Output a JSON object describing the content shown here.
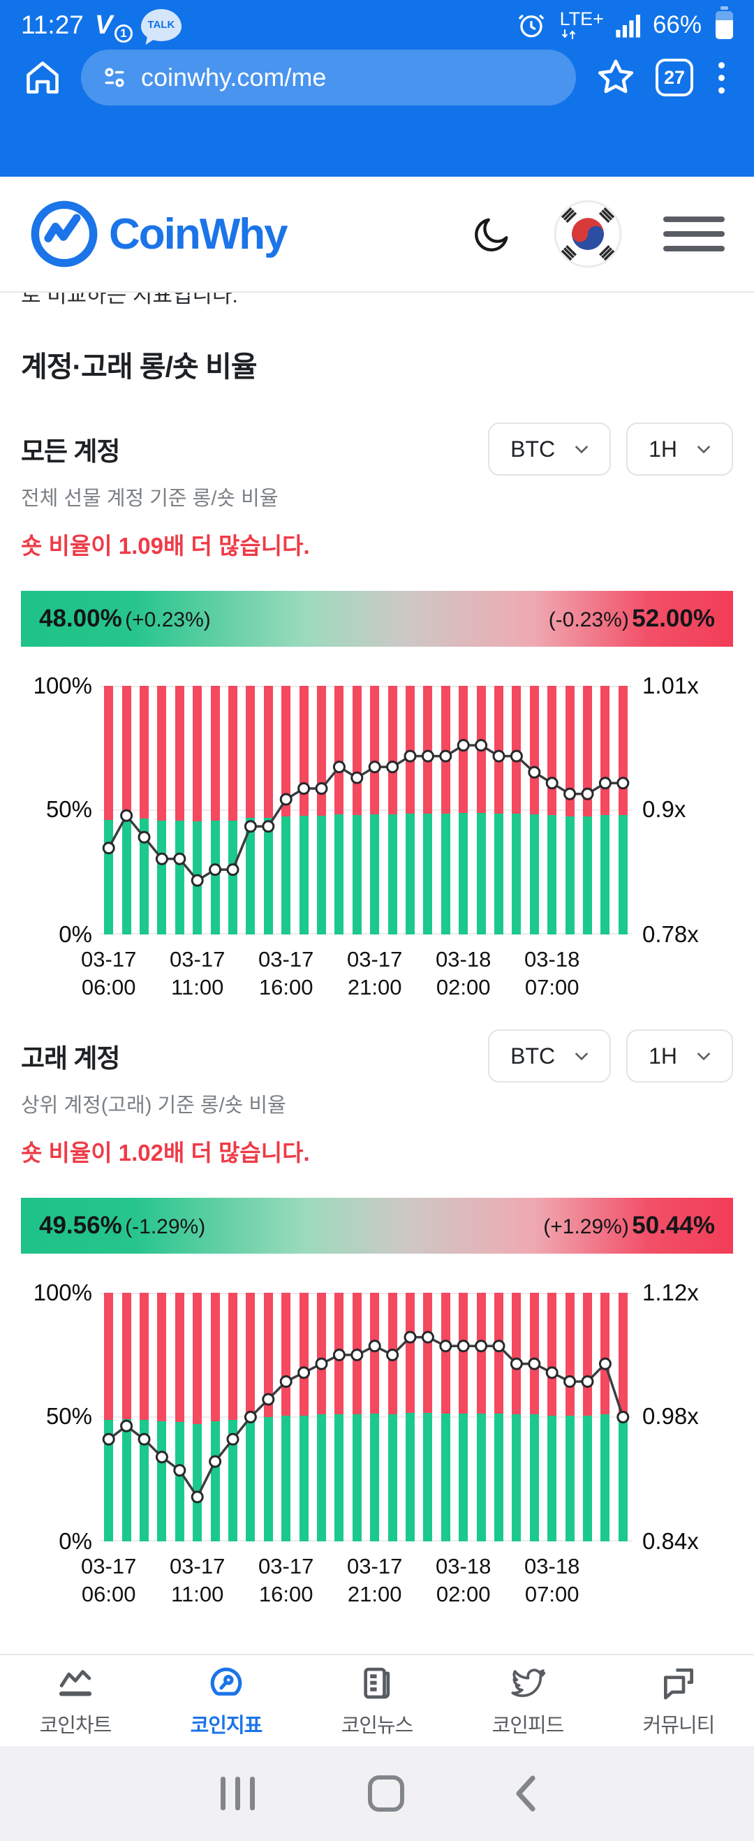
{
  "status_bar": {
    "time": "11:27",
    "notification_glyph": "V",
    "notification_badge": "1",
    "kakao_label": "TALK",
    "network": "LTE+",
    "battery_pct": "66%"
  },
  "browser": {
    "url": "coinwhy.com/me",
    "tab_count": "27"
  },
  "site_header": {
    "brand": "CoinWhy"
  },
  "page": {
    "clipped_text": "로 비교하는 지표입니다.",
    "section_title": "계정·고래 롱/숏 비율"
  },
  "sections": [
    {
      "title": "모든 계정",
      "coin": "BTC",
      "interval": "1H",
      "subtitle": "전체 선물 계정 기준 롱/숏 비율",
      "alert": "숏 비율이 1.09배 더 많습니다.",
      "long_value": "48.00%",
      "long_change": "(+0.23%)",
      "short_change": "(-0.23%)",
      "short_value": "52.00%"
    },
    {
      "title": "고래 계정",
      "coin": "BTC",
      "interval": "1H",
      "subtitle": "상위 계정(고래) 기준 롱/숏 비율",
      "alert": "숏 비율이 1.02배 더 많습니다.",
      "long_value": "49.56%",
      "long_change": "(-1.29%)",
      "short_change": "(+1.29%)",
      "short_value": "50.44%"
    }
  ],
  "chart_data": [
    {
      "type": "bar",
      "subtype": "stacked long/short percent bars with long-short ratio line overlay",
      "title": "모든 계정 롱/숏 비율",
      "legend_position": "none",
      "grid": true,
      "y_left_ticks": [
        "100%",
        "50%",
        "0%"
      ],
      "y_left_range": [
        0,
        100
      ],
      "y_right_ticks": [
        "1.01x",
        "0.9x",
        "0.78x"
      ],
      "y_right_range": [
        0.78,
        1.01
      ],
      "tick_positions": [
        0,
        5,
        10,
        15,
        20,
        25
      ],
      "tick_labels": [
        {
          "date": "03-17",
          "time": "06:00"
        },
        {
          "date": "03-17",
          "time": "11:00"
        },
        {
          "date": "03-17",
          "time": "16:00"
        },
        {
          "date": "03-17",
          "time": "21:00"
        },
        {
          "date": "03-18",
          "time": "02:00"
        },
        {
          "date": "03-18",
          "time": "07:00"
        }
      ],
      "ratio_line": [
        0.86,
        0.89,
        0.87,
        0.85,
        0.85,
        0.83,
        0.84,
        0.84,
        0.88,
        0.88,
        0.905,
        0.915,
        0.915,
        0.935,
        0.925,
        0.935,
        0.935,
        0.945,
        0.945,
        0.945,
        0.955,
        0.955,
        0.945,
        0.945,
        0.93,
        0.92,
        0.91,
        0.91,
        0.92,
        0.92
      ],
      "long_pct_bars": [
        46.2,
        47.1,
        46.5,
        45.9,
        45.9,
        45.4,
        45.7,
        45.7,
        46.8,
        46.8,
        47.5,
        47.8,
        47.8,
        48.3,
        48.1,
        48.3,
        48.3,
        48.6,
        48.6,
        48.6,
        48.8,
        48.8,
        48.6,
        48.6,
        48.2,
        47.9,
        47.6,
        47.6,
        47.9,
        47.9
      ],
      "colors": {
        "long": "#1cc98c",
        "short": "#f4495f",
        "line": "#3b3d40"
      }
    },
    {
      "type": "bar",
      "subtype": "stacked long/short percent bars with long-short ratio line overlay",
      "title": "고래 계정 롱/숏 비율",
      "legend_position": "none",
      "grid": true,
      "y_left_ticks": [
        "100%",
        "50%",
        "0%"
      ],
      "y_left_range": [
        0,
        100
      ],
      "y_right_ticks": [
        "1.12x",
        "0.98x",
        "0.84x"
      ],
      "y_right_range": [
        0.84,
        1.12
      ],
      "tick_positions": [
        0,
        5,
        10,
        15,
        20,
        25
      ],
      "tick_labels": [
        {
          "date": "03-17",
          "time": "06:00"
        },
        {
          "date": "03-17",
          "time": "11:00"
        },
        {
          "date": "03-17",
          "time": "16:00"
        },
        {
          "date": "03-17",
          "time": "21:00"
        },
        {
          "date": "03-18",
          "time": "02:00"
        },
        {
          "date": "03-18",
          "time": "07:00"
        }
      ],
      "ratio_line": [
        0.955,
        0.97,
        0.955,
        0.935,
        0.92,
        0.89,
        0.93,
        0.955,
        0.98,
        1.0,
        1.02,
        1.03,
        1.04,
        1.05,
        1.05,
        1.06,
        1.05,
        1.07,
        1.07,
        1.06,
        1.06,
        1.06,
        1.06,
        1.04,
        1.04,
        1.03,
        1.02,
        1.02,
        1.04,
        0.98
      ],
      "long_pct_bars": [
        48.8,
        49.2,
        48.8,
        48.3,
        47.9,
        47.1,
        48.2,
        48.8,
        49.5,
        50.0,
        50.5,
        50.7,
        51.0,
        51.2,
        51.2,
        51.5,
        51.2,
        51.7,
        51.7,
        51.5,
        51.5,
        51.5,
        51.5,
        51.0,
        51.0,
        50.7,
        50.5,
        50.5,
        51.0,
        49.5
      ],
      "colors": {
        "long": "#1cc98c",
        "short": "#f4495f",
        "line": "#3b3d40"
      }
    }
  ],
  "bottom_nav": {
    "active_index": 1,
    "items": [
      {
        "label": "코인차트"
      },
      {
        "label": "코인지표"
      },
      {
        "label": "코인뉴스"
      },
      {
        "label": "코인피드"
      },
      {
        "label": "커뮤니티"
      }
    ]
  }
}
